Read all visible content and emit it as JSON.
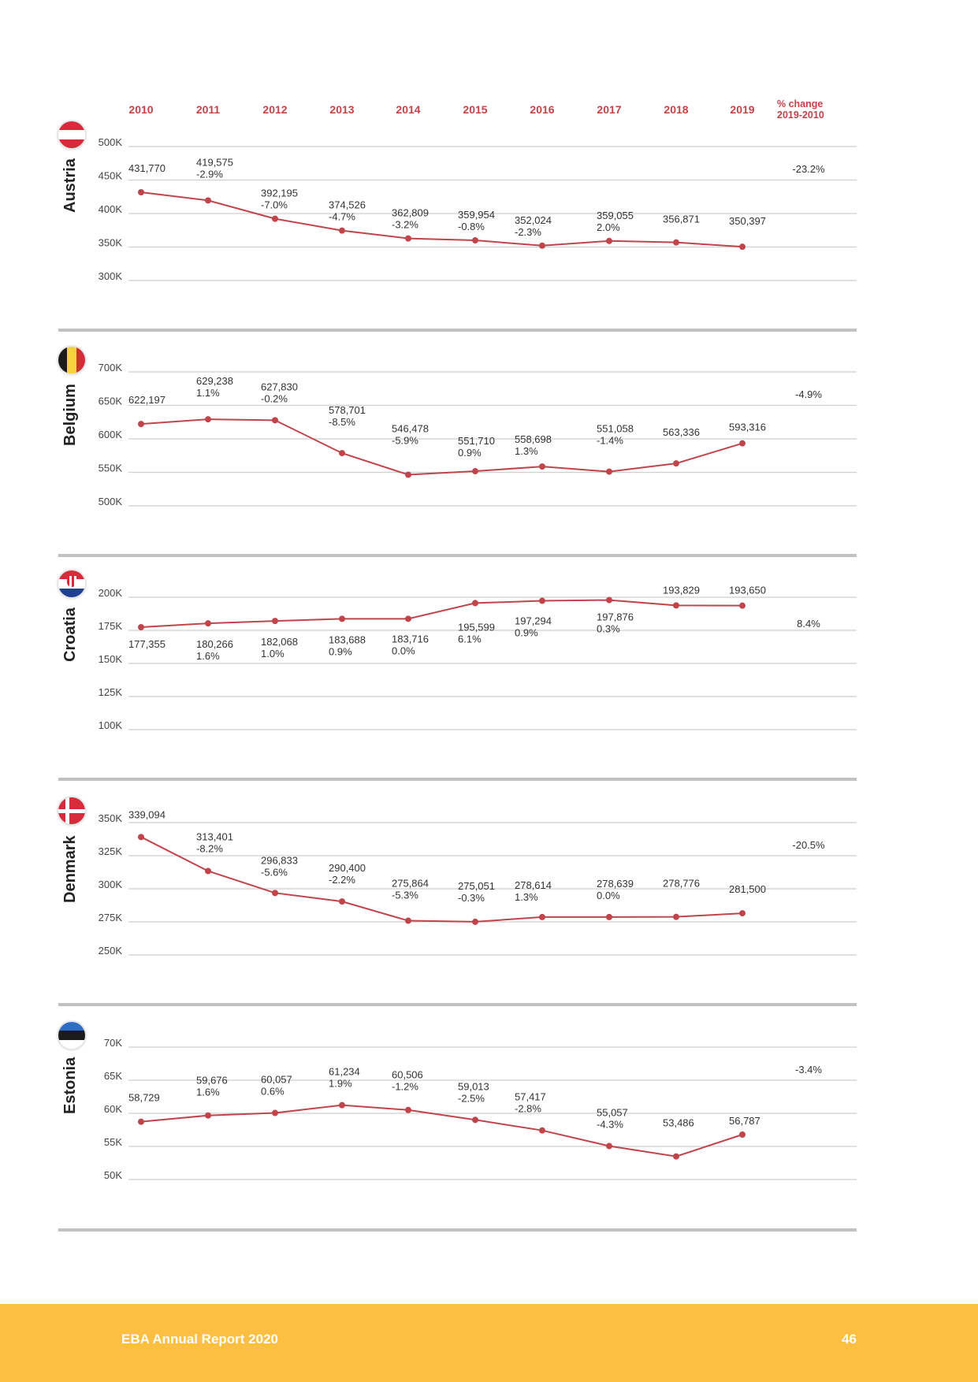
{
  "header": {
    "years": [
      "2010",
      "2011",
      "2012",
      "2013",
      "2014",
      "2015",
      "2016",
      "2017",
      "2018",
      "2019"
    ],
    "pct_change_title": "% change",
    "pct_change_range": "2019-2010"
  },
  "chart_data": [
    {
      "type": "line",
      "country": "Austria",
      "x": [
        "2010",
        "2011",
        "2012",
        "2013",
        "2014",
        "2015",
        "2016",
        "2017",
        "2018",
        "2019"
      ],
      "values": [
        431770,
        419575,
        392195,
        374526,
        362809,
        359954,
        352024,
        359055,
        356871,
        350397
      ],
      "value_labels": [
        "431,770",
        "419,575",
        "392,195",
        "374,526",
        "362,809",
        "359,954",
        "352,024",
        "359,055",
        "356,871",
        "350,397"
      ],
      "change_labels": [
        "",
        "-2.9%",
        "-7.0%",
        "-4.7%",
        "-3.2%",
        "-0.8%",
        "-2.3%",
        "2.0%",
        "",
        ""
      ],
      "total_change": "-23.2%",
      "yticks": [
        "500K",
        "450K",
        "400K",
        "350K",
        "300K"
      ],
      "ylim": [
        300000,
        500000
      ],
      "colors": {
        "line": "#c0444a"
      }
    },
    {
      "type": "line",
      "country": "Belgium",
      "x": [
        "2010",
        "2011",
        "2012",
        "2013",
        "2014",
        "2015",
        "2016",
        "2017",
        "2018",
        "2019"
      ],
      "values": [
        622197,
        629238,
        627830,
        578701,
        546478,
        551710,
        558698,
        551058,
        563336,
        593316
      ],
      "value_labels": [
        "622,197",
        "629,238",
        "627,830",
        "578,701",
        "546,478",
        "551,710",
        "558,698",
        "551,058",
        "563,336",
        "593,316"
      ],
      "change_labels": [
        "",
        "1.1%",
        "-0.2%",
        "-8.5%",
        "-5.9%",
        "0.9%",
        "1.3%",
        "-1.4%",
        "",
        ""
      ],
      "total_change": "-4.9%",
      "yticks": [
        "700K",
        "650K",
        "600K",
        "550K",
        "500K"
      ],
      "ylim": [
        500000,
        700000
      ],
      "colors": {
        "line": "#c0444a"
      }
    },
    {
      "type": "line",
      "country": "Croatia",
      "x": [
        "2010",
        "2011",
        "2012",
        "2013",
        "2014",
        "2015",
        "2016",
        "2017",
        "2018",
        "2019"
      ],
      "values": [
        177355,
        180266,
        182068,
        183688,
        183716,
        195599,
        197294,
        197876,
        193829,
        193650
      ],
      "value_labels": [
        "177,355",
        "180,266",
        "182,068",
        "183,688",
        "183,716",
        "195,599",
        "197,294",
        "197,876",
        "193,829",
        "193,650"
      ],
      "change_labels": [
        "",
        "1.6%",
        "1.0%",
        "0.9%",
        "0.0%",
        "6.1%",
        "0.9%",
        "0.3%",
        "",
        ""
      ],
      "total_change": "8.4%",
      "yticks": [
        "200K",
        "175K",
        "150K",
        "125K",
        "100K"
      ],
      "ylim": [
        100000,
        200000
      ],
      "colors": {
        "line": "#c0444a"
      }
    },
    {
      "type": "line",
      "country": "Denmark",
      "x": [
        "2010",
        "2011",
        "2012",
        "2013",
        "2014",
        "2015",
        "2016",
        "2017",
        "2018",
        "2019"
      ],
      "values": [
        339094,
        313401,
        296833,
        290400,
        275864,
        275051,
        278614,
        278639,
        278776,
        281500
      ],
      "value_labels": [
        "339,094",
        "313,401",
        "296,833",
        "290,400",
        "275,864",
        "275,051",
        "278,614",
        "278,639",
        "278,776",
        "281,500"
      ],
      "change_labels": [
        "",
        "-8.2%",
        "-5.6%",
        "-2.2%",
        "-5.3%",
        "-0.3%",
        "1.3%",
        "0.0%",
        "",
        ""
      ],
      "total_change": "-20.5%",
      "yticks": [
        "350K",
        "325K",
        "300K",
        "275K",
        "250K"
      ],
      "ylim": [
        250000,
        350000
      ],
      "colors": {
        "line": "#c0444a"
      }
    },
    {
      "type": "line",
      "country": "Estonia",
      "x": [
        "2010",
        "2011",
        "2012",
        "2013",
        "2014",
        "2015",
        "2016",
        "2017",
        "2018",
        "2019"
      ],
      "values": [
        58729,
        59676,
        60057,
        61234,
        60506,
        59013,
        57417,
        55057,
        53486,
        56787
      ],
      "value_labels": [
        "58,729",
        "59,676",
        "60,057",
        "61,234",
        "60,506",
        "59,013",
        "57,417",
        "55,057",
        "53,486",
        "56,787"
      ],
      "change_labels": [
        "",
        "1.6%",
        "0.6%",
        "1.9%",
        "-1.2%",
        "-2.5%",
        "-2.8%",
        "-4.3%",
        "",
        ""
      ],
      "total_change": "-3.4%",
      "yticks": [
        "70K",
        "65K",
        "60K",
        "55K",
        "50K"
      ],
      "ylim": [
        50000,
        70000
      ],
      "colors": {
        "line": "#c0444a"
      }
    }
  ],
  "footer": {
    "title": "EBA Annual Report 2020",
    "page": "46"
  }
}
